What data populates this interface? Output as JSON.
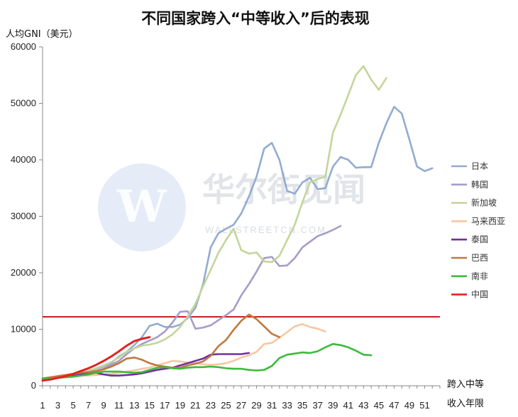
{
  "chart_data": {
    "type": "line",
    "title": "不同国家跨入“中等收入”后的表现",
    "ylabel": "人均GNI（美元）",
    "xlabel_line1": "跨入中等",
    "xlabel_line2": "收入年限",
    "ylim": [
      0,
      60000
    ],
    "xlim": [
      1,
      53
    ],
    "yticks": [
      0,
      10000,
      20000,
      30000,
      40000,
      50000,
      60000
    ],
    "xticks": [
      1,
      3,
      5,
      7,
      9,
      11,
      13,
      15,
      17,
      19,
      21,
      23,
      25,
      27,
      29,
      31,
      33,
      35,
      37,
      39,
      41,
      43,
      45,
      47,
      49,
      51
    ],
    "grid": "none",
    "legend_position": "right",
    "reference_line": {
      "y": 12200,
      "color": "#cc1f1f"
    },
    "series": [
      {
        "name": "日本",
        "color": "#92acd0",
        "values": [
          1000,
          1200,
          1400,
          1600,
          1900,
          2200,
          2600,
          3000,
          3400,
          4000,
          5200,
          6000,
          7200,
          8600,
          10600,
          11000,
          10400,
          10400,
          10800,
          12000,
          13800,
          18000,
          24500,
          27000,
          27800,
          28500,
          30500,
          33500,
          37000,
          42000,
          43000,
          40000,
          34500,
          34000,
          36000,
          36800,
          34800,
          35000,
          38800,
          40500,
          40000,
          38600,
          38700,
          38700,
          43000,
          46500,
          49400,
          48200,
          43600,
          38800,
          38000,
          38500
        ]
      },
      {
        "name": "韩国",
        "color": "#a89cc8",
        "values": [
          1300,
          1500,
          1700,
          1900,
          2100,
          2200,
          2400,
          2600,
          3000,
          3700,
          4400,
          5600,
          6600,
          7400,
          8000,
          8600,
          9600,
          11200,
          13100,
          13200,
          10100,
          10300,
          10700,
          11600,
          12500,
          13500,
          16000,
          18000,
          20200,
          22600,
          22800,
          21200,
          21300,
          22600,
          24500,
          25500,
          26500,
          27000,
          27600,
          28300
        ]
      },
      {
        "name": "新加坡",
        "color": "#c3d69b",
        "values": [
          1300,
          1500,
          1700,
          1900,
          2100,
          2400,
          2700,
          3100,
          3600,
          4200,
          5000,
          6000,
          6600,
          7100,
          7300,
          7600,
          8200,
          9100,
          10400,
          12300,
          14500,
          17600,
          20500,
          23500,
          25800,
          27800,
          24000,
          23400,
          23600,
          22000,
          21900,
          23000,
          25800,
          28500,
          32500,
          36000,
          36600,
          37000,
          44800,
          48000,
          51500,
          55000,
          56600,
          54200,
          52400,
          54500
        ]
      },
      {
        "name": "马来西亚",
        "color": "#f6c7a1",
        "values": [
          1300,
          1400,
          1500,
          1600,
          1700,
          1800,
          1800,
          1900,
          2000,
          2100,
          2300,
          2500,
          2700,
          3000,
          3200,
          3600,
          4000,
          4400,
          4300,
          4100,
          4000,
          3800,
          3700,
          3800,
          4000,
          4400,
          5000,
          5400,
          6000,
          7400,
          7600,
          8500,
          9500,
          10500,
          10900,
          10400,
          10100,
          9600
        ]
      },
      {
        "name": "泰国",
        "color": "#7030a0",
        "values": [
          1000,
          1200,
          1400,
          1600,
          1800,
          2000,
          2200,
          2300,
          2000,
          1800,
          1800,
          1900,
          2000,
          2200,
          2500,
          2800,
          3000,
          3200,
          3600,
          4000,
          4400,
          4800,
          5500,
          5600,
          5600,
          5600,
          5600,
          5800
        ]
      },
      {
        "name": "巴西",
        "color": "#c0793f",
        "values": [
          1300,
          1500,
          1700,
          1900,
          2100,
          2300,
          2400,
          2600,
          2900,
          3400,
          4000,
          4800,
          5000,
          4600,
          4000,
          3600,
          3400,
          3200,
          3200,
          3600,
          3900,
          4300,
          5300,
          7000,
          8100,
          9900,
          11500,
          12600,
          11800,
          10500,
          9200,
          8600
        ]
      },
      {
        "name": "南非",
        "color": "#3dba3d",
        "values": [
          1200,
          1300,
          1400,
          1500,
          1600,
          1800,
          2000,
          2300,
          2500,
          2500,
          2500,
          2400,
          2300,
          2400,
          2800,
          3200,
          3300,
          3100,
          3000,
          3200,
          3300,
          3300,
          3400,
          3300,
          3100,
          3000,
          3000,
          2800,
          2700,
          2800,
          3500,
          4900,
          5500,
          5700,
          5900,
          5800,
          6100,
          6800,
          7400,
          7200,
          6800,
          6200,
          5500,
          5400
        ]
      },
      {
        "name": "中国",
        "color": "#e02424",
        "values": [
          900,
          1100,
          1400,
          1700,
          2100,
          2600,
          3100,
          3700,
          4400,
          5200,
          6100,
          7100,
          7900,
          8300,
          8600
        ]
      }
    ]
  }
}
